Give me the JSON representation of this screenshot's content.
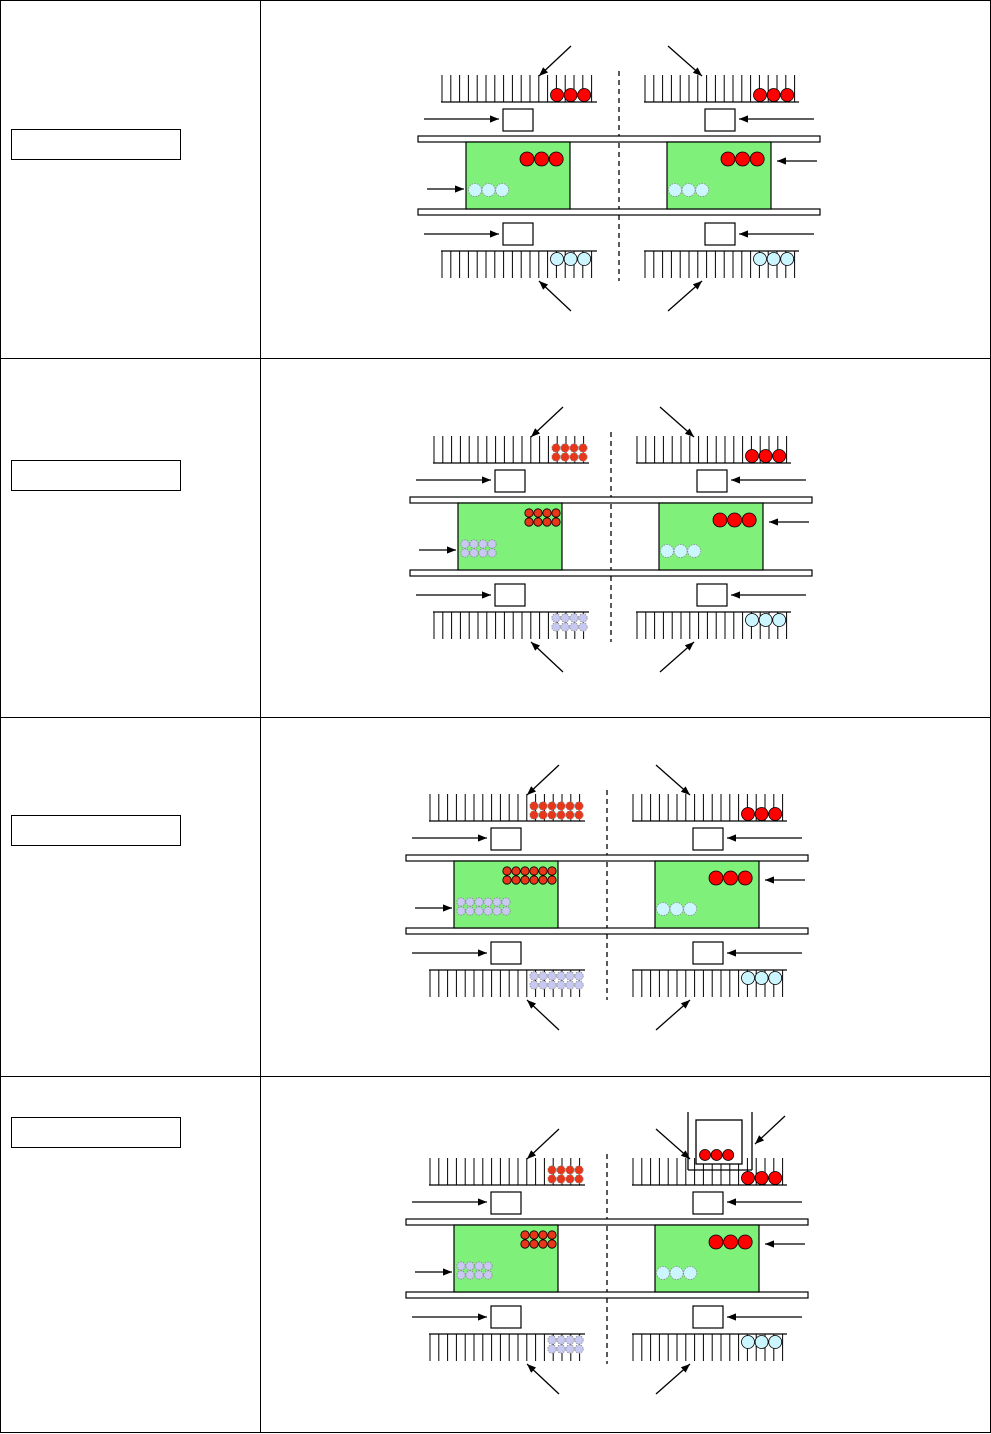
{
  "rows": [
    {
      "label": "",
      "left_count_rows": 1,
      "left_count_cols": 3,
      "left_style": "solid",
      "corridor": false
    },
    {
      "label": "",
      "left_count_rows": 2,
      "left_count_cols": 4,
      "left_style": "dotted",
      "corridor": false
    },
    {
      "label": "",
      "left_count_rows": 2,
      "left_count_cols": 6,
      "left_style": "dotted",
      "corridor": false
    },
    {
      "label": "",
      "left_count_rows": 2,
      "left_count_cols": 4,
      "left_style": "dotted",
      "corridor": true
    }
  ],
  "colors": {
    "red": "#ff0000",
    "red_dark": "#e8361a",
    "light_blue": "#ccf6ff",
    "lavender": "#c7c9f2",
    "green": "#7ff07a",
    "line": "#000000"
  }
}
